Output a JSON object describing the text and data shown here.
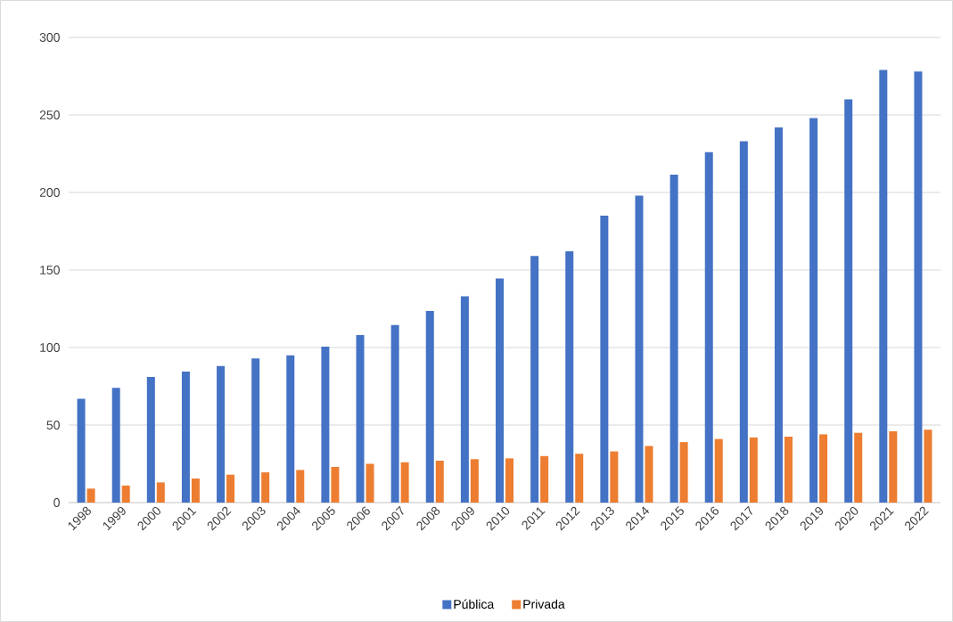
{
  "chart_data": {
    "type": "bar",
    "categories": [
      "1998",
      "1999",
      "2000",
      "2001",
      "2002",
      "2003",
      "2004",
      "2005",
      "2006",
      "2007",
      "2008",
      "2009",
      "2010",
      "2011",
      "2012",
      "2013",
      "2014",
      "2015",
      "2016",
      "2017",
      "2018",
      "2019",
      "2020",
      "2021",
      "2022"
    ],
    "series": [
      {
        "name": "Pública",
        "color": "#4472c4",
        "values": [
          67,
          74,
          81,
          84.5,
          88,
          93,
          95,
          100.5,
          108,
          114.5,
          123.5,
          133,
          144.5,
          159,
          162,
          185,
          198,
          211.5,
          226,
          233,
          242,
          248,
          260,
          279,
          278
        ]
      },
      {
        "name": "Privada",
        "color": "#ed7d31",
        "values": [
          9,
          11,
          13,
          15.5,
          18,
          19.5,
          21,
          23,
          25,
          26,
          27,
          28,
          28.5,
          30,
          31.5,
          33,
          36.5,
          39,
          41,
          42,
          42.5,
          44,
          45,
          46,
          47
        ]
      }
    ],
    "ylim": [
      0,
      300
    ],
    "yticks": [
      0,
      50,
      100,
      150,
      200,
      250,
      300
    ],
    "grid": "y",
    "legend": "bottom"
  }
}
